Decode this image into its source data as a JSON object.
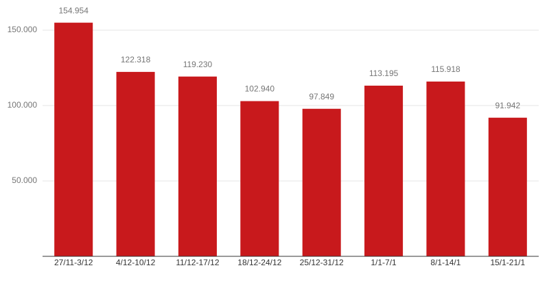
{
  "chart_data": {
    "type": "bar",
    "categories": [
      "27/11-3/12",
      "4/12-10/12",
      "11/12-17/12",
      "18/12-24/12",
      "25/12-31/12",
      "1/1-7/1",
      "8/1-14/1",
      "15/1-21/1"
    ],
    "values": [
      154954,
      122318,
      119230,
      102940,
      97849,
      113195,
      115918,
      91942
    ],
    "value_labels": [
      "154.954",
      "122.318",
      "119.230",
      "102.940",
      "97.849",
      "113.195",
      "115.918",
      "91.942"
    ],
    "color": "#c8191c",
    "ylim": [
      0,
      170000
    ],
    "yticks": [
      {
        "value": 50000,
        "label": "50.000"
      },
      {
        "value": 100000,
        "label": "100.000"
      },
      {
        "value": 150000,
        "label": "150.000"
      }
    ],
    "grid": true
  }
}
